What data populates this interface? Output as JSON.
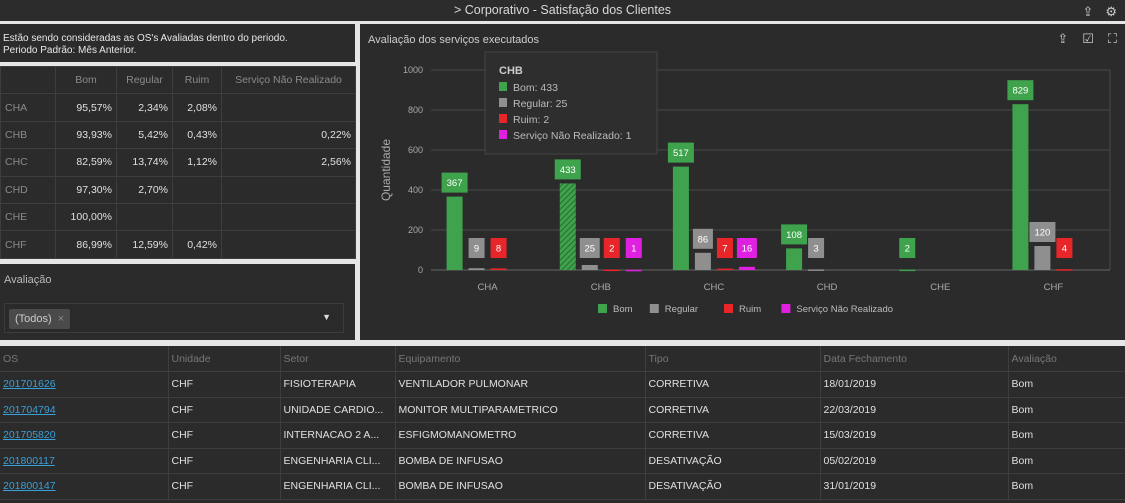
{
  "header": {
    "title": "> Corporativo - Satisfação dos Clientes",
    "icons": [
      "share-icon",
      "filter-settings-icon"
    ]
  },
  "info": {
    "line1": "Estão sendo consideradas as OS's Avaliadas dentro do periodo.",
    "line2": "Periodo Padrão: Mês Anterior."
  },
  "summary": {
    "headers": [
      "",
      "Bom",
      "Regular",
      "Ruim",
      "Serviço Não Realizado"
    ],
    "rows": [
      [
        "CHA",
        "95,57%",
        "2,34%",
        "2,08%",
        ""
      ],
      [
        "CHB",
        "93,93%",
        "5,42%",
        "0,43%",
        "0,22%"
      ],
      [
        "CHC",
        "82,59%",
        "13,74%",
        "1,12%",
        "2,56%"
      ],
      [
        "CHD",
        "97,30%",
        "2,70%",
        "",
        ""
      ],
      [
        "CHE",
        "100,00%",
        "",
        "",
        ""
      ],
      [
        "CHF",
        "86,99%",
        "12,59%",
        "0,42%",
        ""
      ]
    ]
  },
  "filter": {
    "label": "Avaliação",
    "chip": "(Todos)",
    "chip_remove": "×",
    "caret": "▼"
  },
  "chart_panel": {
    "title": "Avaliação dos serviços executados",
    "icons": [
      "share-icon",
      "checkbox-icon",
      "fullscreen-icon"
    ]
  },
  "chart_data": {
    "type": "bar",
    "ylabel": "Quantidade",
    "ylim": [
      0,
      1000
    ],
    "yticks": [
      0,
      200,
      400,
      600,
      800,
      1000
    ],
    "categories": [
      "CHA",
      "CHB",
      "CHC",
      "CHD",
      "CHE",
      "CHF"
    ],
    "series": [
      {
        "name": "Bom",
        "color": "#3fa34d",
        "values": [
          367,
          433,
          517,
          108,
          2,
          829
        ]
      },
      {
        "name": "Regular",
        "color": "#8f8f8f",
        "values": [
          9,
          25,
          86,
          3,
          null,
          120
        ]
      },
      {
        "name": "Ruim",
        "color": "#e8262a",
        "values": [
          8,
          2,
          7,
          null,
          null,
          4
        ]
      },
      {
        "name": "Serviço Não Realizado",
        "color": "#e020e0",
        "values": [
          null,
          1,
          16,
          null,
          null,
          null
        ]
      }
    ],
    "legend": "bottom",
    "grid": true,
    "tooltip": {
      "title": "CHB",
      "lines": [
        "Bom: 433",
        "Regular: 25",
        "Ruim: 2",
        "Serviço Não Realizado: 1"
      ]
    }
  },
  "orders": {
    "headers": [
      "OS",
      "Unidade",
      "Setor",
      "Equipamento",
      "Tipo",
      "Data Fechamento",
      "Avaliação"
    ],
    "rows": [
      [
        "201701626",
        "CHF",
        "FISIOTERAPIA",
        "VENTILADOR PULMONAR",
        "CORRETIVA",
        "18/01/2019",
        "Bom"
      ],
      [
        "201704794",
        "CHF",
        "UNIDADE CARDIO...",
        "MONITOR MULTIPARAMETRICO",
        "CORRETIVA",
        "22/03/2019",
        "Bom"
      ],
      [
        "201705820",
        "CHF",
        "INTERNACAO 2 A...",
        "ESFIGMOMANOMETRO",
        "CORRETIVA",
        "15/03/2019",
        "Bom"
      ],
      [
        "201800117",
        "CHF",
        "ENGENHARIA CLI...",
        "BOMBA DE INFUSAO",
        "DESATIVAÇÃO",
        "05/02/2019",
        "Bom"
      ],
      [
        "201800147",
        "CHF",
        "ENGENHARIA CLI...",
        "BOMBA DE INFUSAO",
        "DESATIVAÇÃO",
        "31/01/2019",
        "Bom"
      ]
    ]
  }
}
